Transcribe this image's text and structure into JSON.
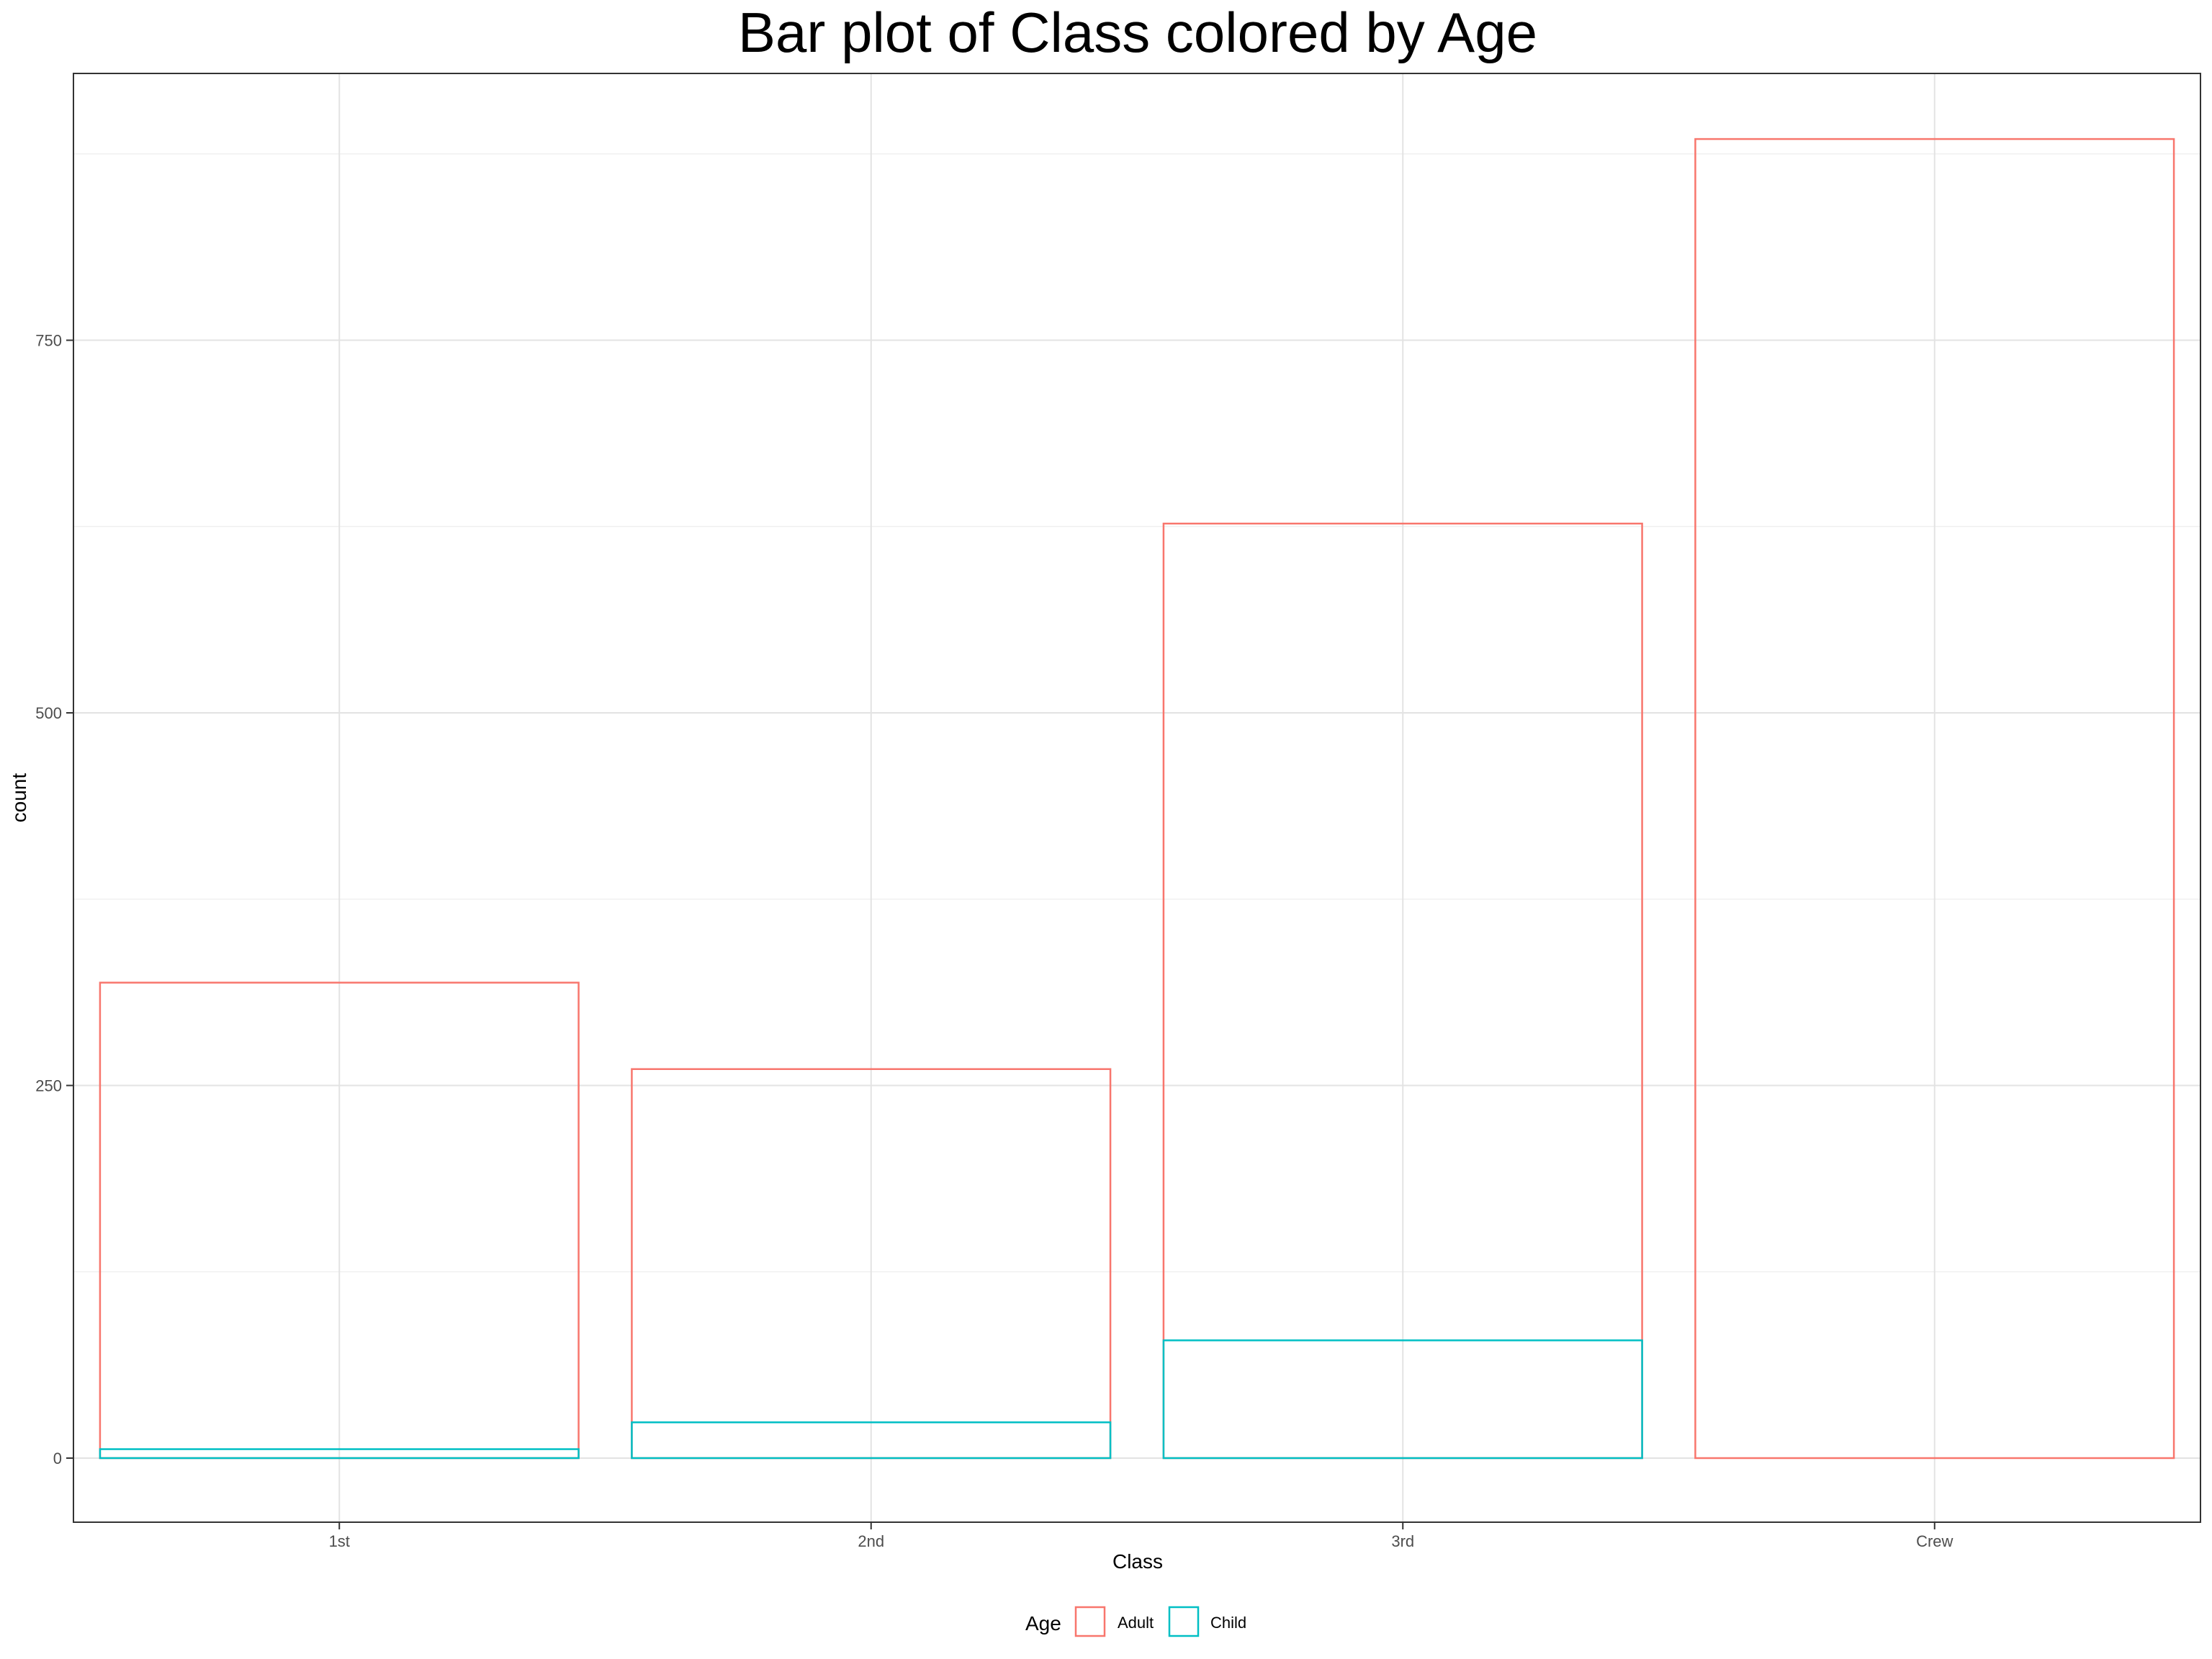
{
  "chart_data": {
    "type": "bar",
    "title": "Bar plot of Class colored by Age",
    "xlabel": "Class",
    "ylabel": "count",
    "categories": [
      "1st",
      "2nd",
      "3rd",
      "Crew"
    ],
    "series": [
      {
        "name": "Adult",
        "color": "#F8766D",
        "values": [
          319,
          261,
          627,
          885
        ]
      },
      {
        "name": "Child",
        "color": "#00BFC4",
        "values": [
          6,
          24,
          79,
          0
        ]
      }
    ],
    "ylim": [
      -43,
      929
    ],
    "yticks": [
      0,
      250,
      500,
      750
    ],
    "legend": {
      "title": "Age",
      "position": "bottom"
    },
    "grid": true,
    "bar_style": "outline"
  }
}
